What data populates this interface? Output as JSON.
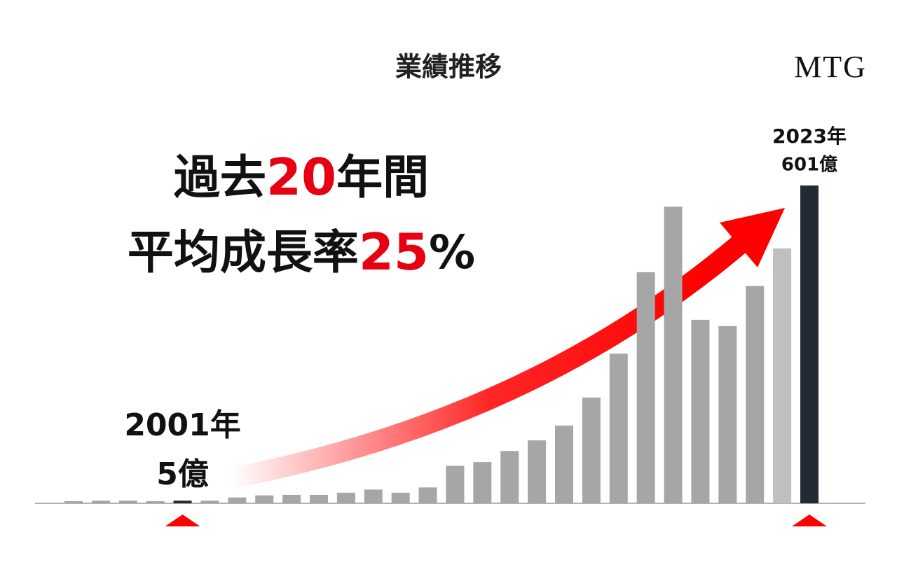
{
  "chart_data": {
    "type": "bar",
    "title": "業績推移",
    "logo": "MTG",
    "headline": {
      "line1": [
        "過去",
        "20",
        "年間"
      ],
      "line2": [
        "平均成長率",
        "25",
        "%"
      ],
      "accent_color": "#e60012"
    },
    "annotations": {
      "start": {
        "year": "2001年",
        "value": "5億",
        "index": 4
      },
      "end": {
        "year": "2023年",
        "value": "601億",
        "index": 27
      }
    },
    "categories": [
      null,
      null,
      null,
      null,
      null,
      null,
      null,
      null,
      null,
      null,
      null,
      null,
      null,
      null,
      null,
      null,
      null,
      null,
      null,
      null,
      null,
      null,
      null,
      null,
      null,
      null,
      null,
      null
    ],
    "values": [
      4,
      5,
      5,
      4,
      5,
      5,
      11,
      15,
      16,
      16,
      20,
      26,
      20,
      30,
      71,
      78,
      99,
      119,
      147,
      200,
      283,
      437,
      561,
      347,
      335,
      411,
      482,
      601
    ],
    "colors": [
      "#a6a6a6",
      "#a6a6a6",
      "#a6a6a6",
      "#a6a6a6",
      "#222b35",
      "#a6a6a6",
      "#a6a6a6",
      "#a6a6a6",
      "#a6a6a6",
      "#a6a6a6",
      "#a6a6a6",
      "#a6a6a6",
      "#a6a6a6",
      "#a6a6a6",
      "#a6a6a6",
      "#a6a6a6",
      "#a6a6a6",
      "#a6a6a6",
      "#a6a6a6",
      "#a6a6a6",
      "#a6a6a6",
      "#a6a6a6",
      "#a6a6a6",
      "#a6a6a6",
      "#a6a6a6",
      "#a6a6a6",
      "#bfbfbf",
      "#222b35"
    ],
    "ylim": [
      0,
      601
    ]
  }
}
